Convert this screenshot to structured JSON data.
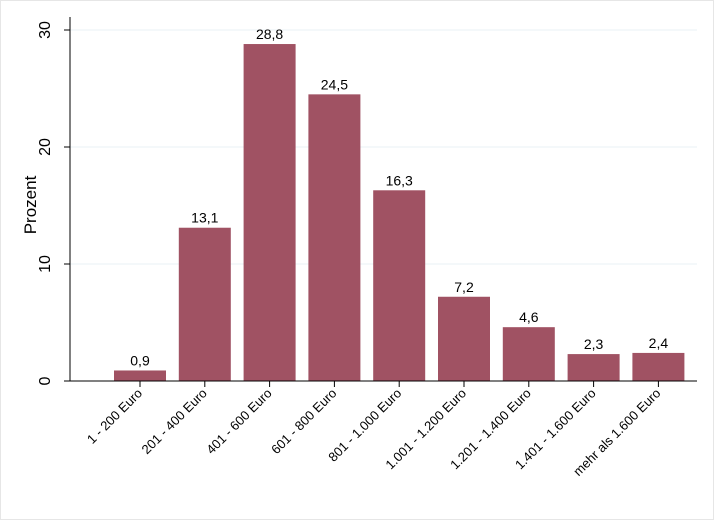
{
  "chart_data": {
    "type": "bar",
    "categories": [
      "1 - 200 Euro",
      "201 - 400 Euro",
      "401 - 600 Euro",
      "601 - 800 Euro",
      "801 - 1.000 Euro",
      "1.001 - 1.200 Euro",
      "1.201 - 1.400 Euro",
      "1.401 - 1.600 Euro",
      "mehr als 1.600 Euro"
    ],
    "values": [
      0.9,
      13.1,
      28.8,
      24.5,
      16.3,
      7.2,
      4.6,
      2.3,
      2.4
    ],
    "value_labels": [
      "0,9",
      "13,1",
      "28,8",
      "24,5",
      "16,3",
      "7,2",
      "4,6",
      "2,3",
      "2,4"
    ],
    "ylabel": "Prozent",
    "ylim": [
      0,
      30
    ],
    "yticks": [
      0,
      10,
      20,
      30
    ],
    "grid": true,
    "bar_color": "#A05263"
  }
}
